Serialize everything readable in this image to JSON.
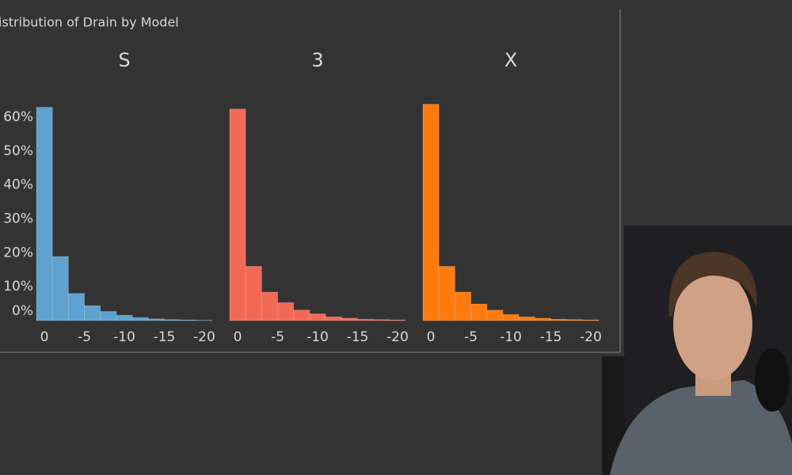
{
  "title": "istribution of Drain by Model",
  "chart_data": [
    {
      "type": "histogram",
      "title": "S",
      "color": "#5fa2d0",
      "bins": [
        1,
        -1,
        -3,
        -5,
        -7,
        -9,
        -11,
        -13,
        -15,
        -17,
        -19,
        -21
      ],
      "values": [
        62.9,
        18.9,
        8,
        4.4,
        2.7,
        1.6,
        0.9,
        0.5,
        0.3,
        0.2,
        0.1
      ],
      "xlim": [
        1,
        -21
      ],
      "xticks": [
        0,
        -5,
        -10,
        -15,
        -20
      ],
      "ylim": [
        0,
        67
      ],
      "yticks": [
        {
          "value": 0,
          "label": "0%"
        },
        {
          "value": 10,
          "label": "10%"
        },
        {
          "value": 20,
          "label": "20%"
        },
        {
          "value": 30,
          "label": "30%"
        },
        {
          "value": 40,
          "label": "40%"
        },
        {
          "value": 50,
          "label": "50%"
        },
        {
          "value": 60,
          "label": "60%"
        }
      ]
    },
    {
      "type": "histogram",
      "title": "3",
      "color": "#f26a55",
      "bins": [
        1,
        -1,
        -3,
        -5,
        -7,
        -9,
        -11,
        -13,
        -15,
        -17,
        -19,
        -21
      ],
      "values": [
        62.4,
        16,
        8.4,
        5.3,
        3.1,
        2,
        1.1,
        0.7,
        0.4,
        0.3,
        0.2
      ],
      "xlim": [
        1,
        -21
      ],
      "xticks": [
        0,
        -5,
        -10,
        -15,
        -20
      ],
      "ylim": [
        0,
        67
      ]
    },
    {
      "type": "histogram",
      "title": "X",
      "color": "#ff7b0f",
      "bins": [
        1,
        -1,
        -3,
        -5,
        -7,
        -9,
        -11,
        -13,
        -15,
        -17,
        -19,
        -21
      ],
      "values": [
        63.8,
        16,
        8.4,
        4.9,
        3.1,
        1.8,
        1.1,
        0.7,
        0.4,
        0.3,
        0.2
      ],
      "xlim": [
        1,
        -21
      ],
      "xticks": [
        0,
        -5,
        -10,
        -15,
        -20
      ],
      "ylim": [
        0,
        67
      ]
    }
  ]
}
